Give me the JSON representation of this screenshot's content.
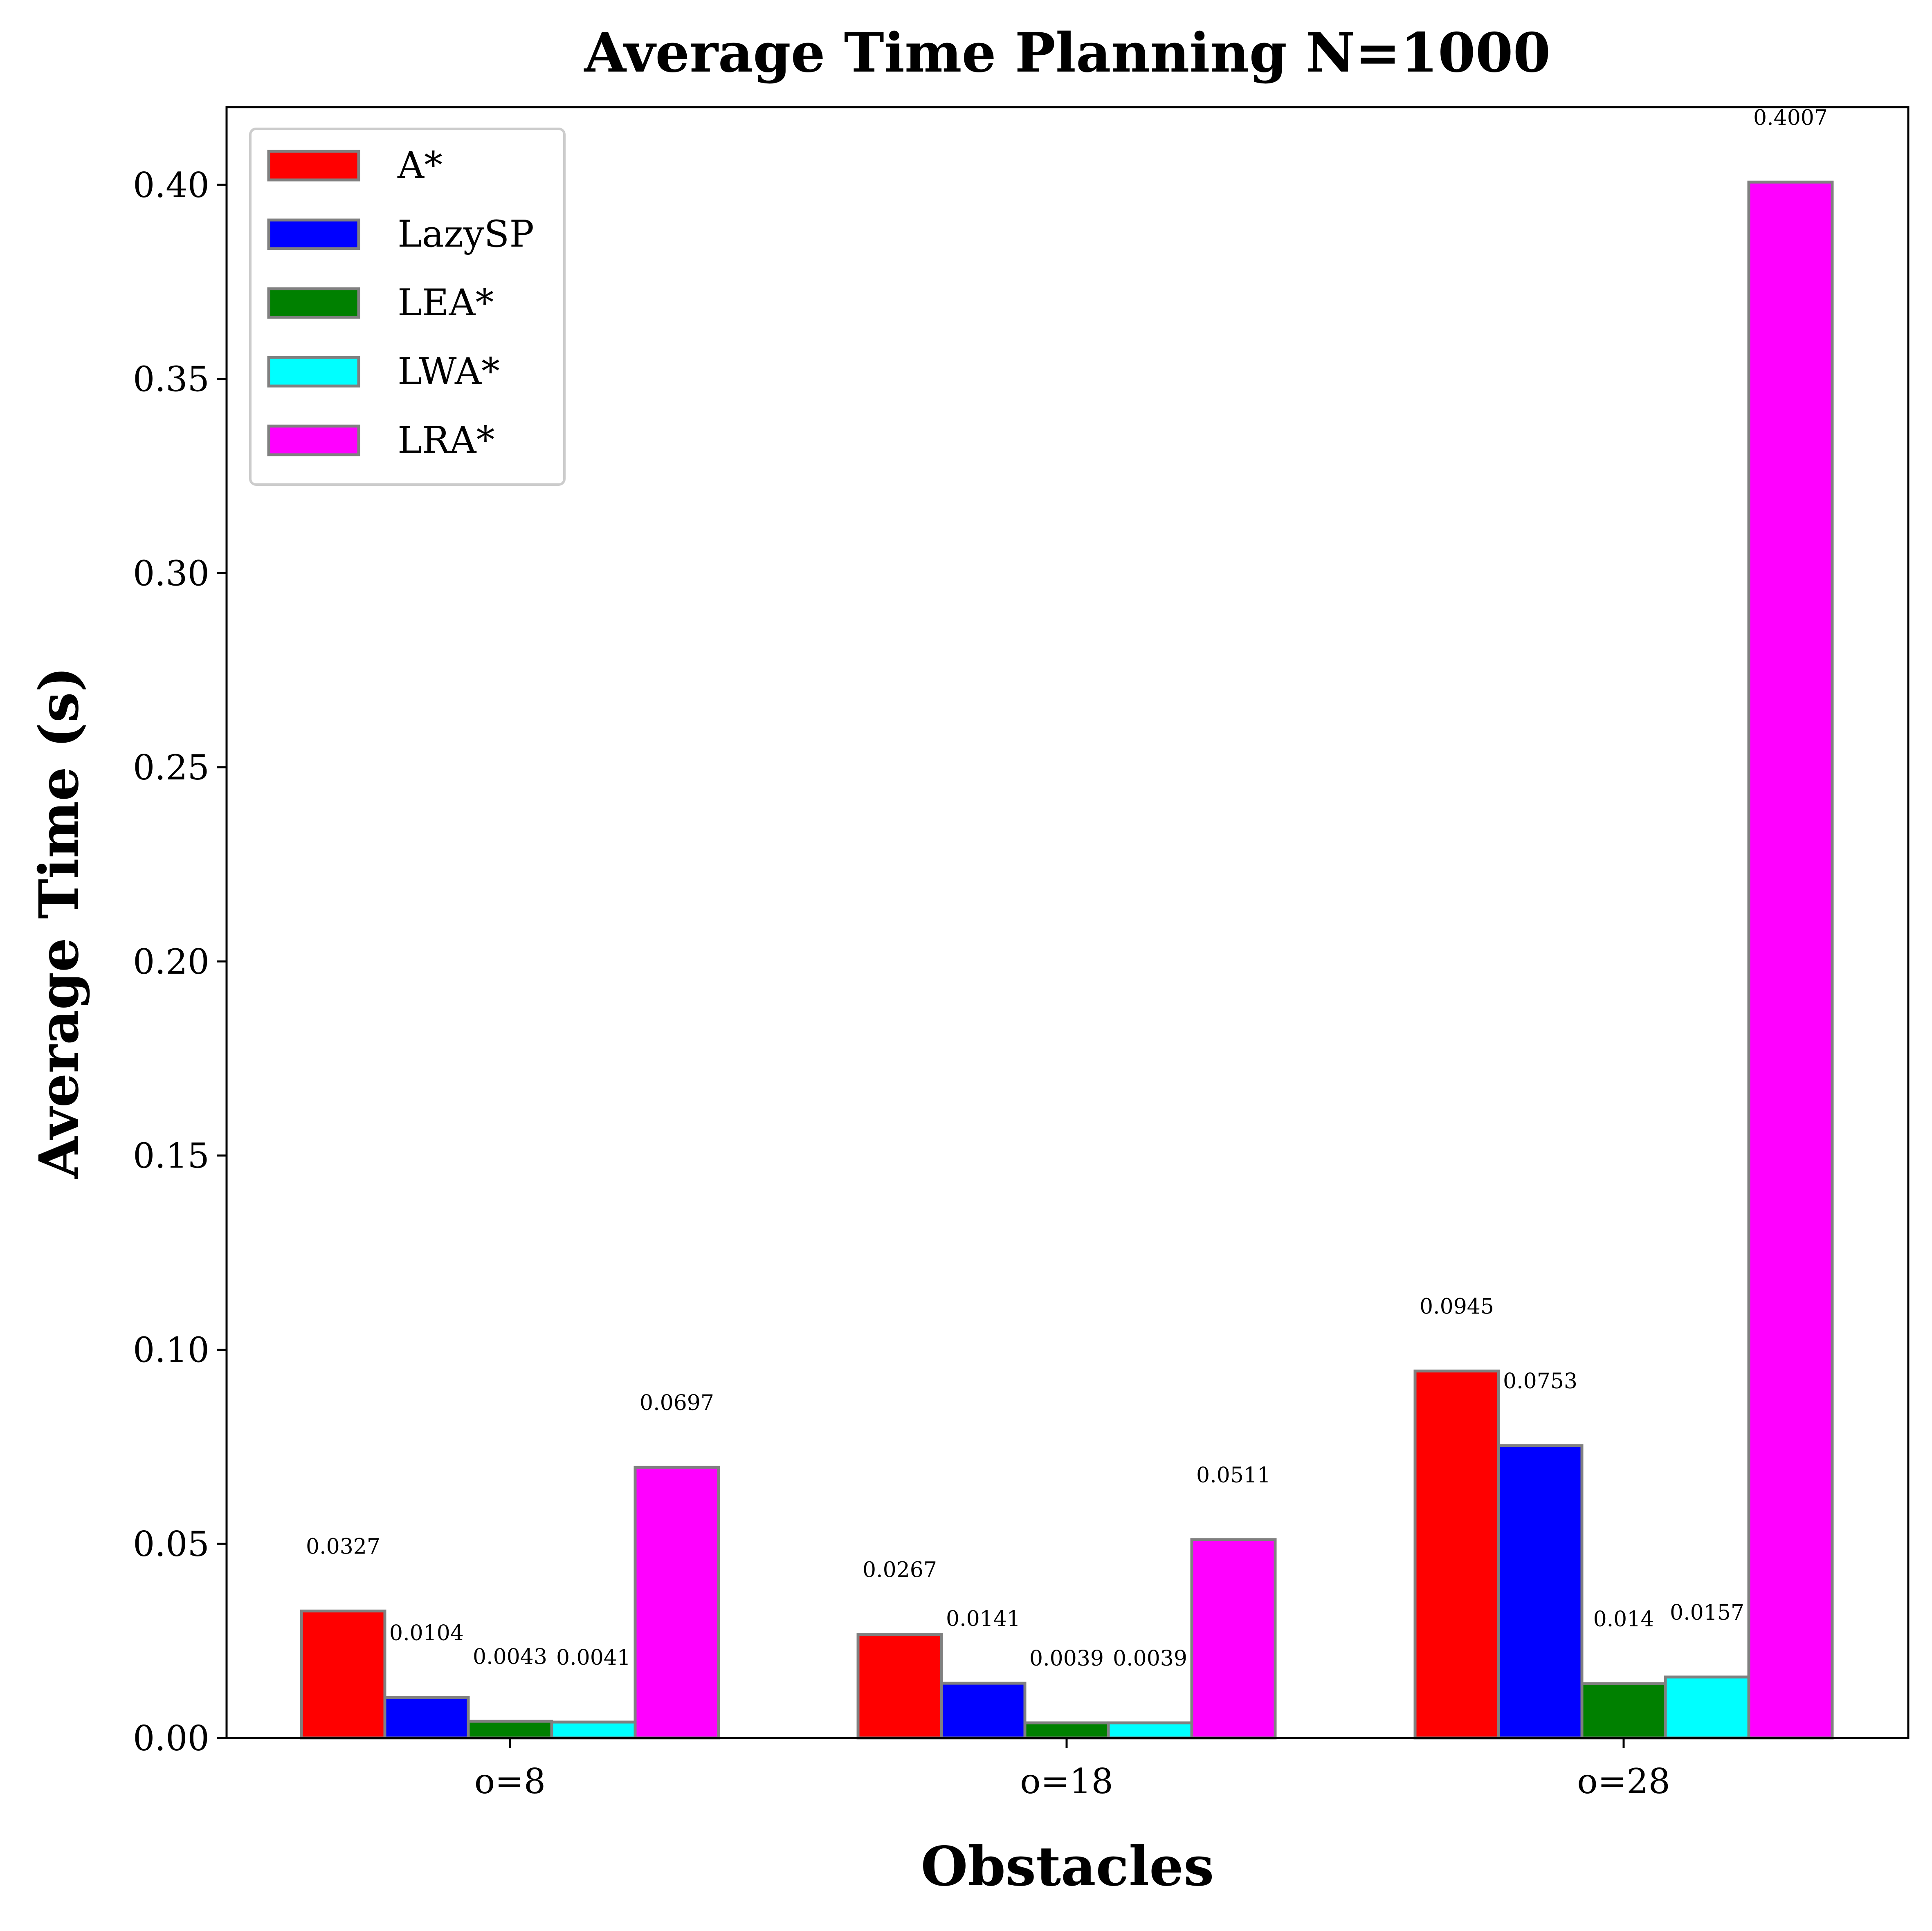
{
  "chart_data": {
    "type": "bar",
    "title": "Average Time Planning N=1000",
    "xlabel": "Obstacles",
    "ylabel": "Average Time (s)",
    "categories": [
      "o=8",
      "o=18",
      "o=28"
    ],
    "ylim": [
      0,
      0.42
    ],
    "yticks": [
      0.0,
      0.05,
      0.1,
      0.15,
      0.2,
      0.25,
      0.3,
      0.35,
      0.4
    ],
    "ytick_labels": [
      "0.00",
      "0.05",
      "0.10",
      "0.15",
      "0.20",
      "0.25",
      "0.30",
      "0.35",
      "0.40"
    ],
    "grid": false,
    "legend_position": "top-left",
    "series": [
      {
        "name": "A*",
        "color": "#ff0000",
        "values": [
          0.0327,
          0.0267,
          0.0945
        ],
        "labels": [
          "0.0327",
          "0.0267",
          "0.0945"
        ]
      },
      {
        "name": "LazySP",
        "color": "#0000ff",
        "values": [
          0.0104,
          0.0141,
          0.0753
        ],
        "labels": [
          "0.0104",
          "0.0141",
          "0.0753"
        ]
      },
      {
        "name": "LEA*",
        "color": "#008000",
        "values": [
          0.0043,
          0.0039,
          0.014
        ],
        "labels": [
          "0.0043",
          "0.0039",
          "0.014"
        ]
      },
      {
        "name": "LWA*",
        "color": "#00ffff",
        "values": [
          0.0041,
          0.0039,
          0.0157
        ],
        "labels": [
          "0.0041",
          "0.0039",
          "0.0157"
        ]
      },
      {
        "name": "LRA*",
        "color": "#ff00ff",
        "values": [
          0.0697,
          0.0511,
          0.4007
        ],
        "labels": [
          "0.0697",
          "0.0511",
          "0.4007"
        ]
      }
    ]
  }
}
